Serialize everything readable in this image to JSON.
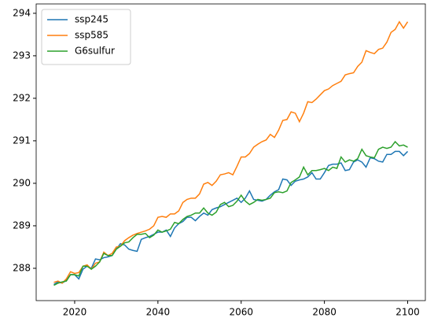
{
  "chart_data": {
    "type": "line",
    "x": [
      2015,
      2016,
      2017,
      2018,
      2019,
      2020,
      2021,
      2022,
      2023,
      2024,
      2025,
      2026,
      2027,
      2028,
      2029,
      2030,
      2031,
      2032,
      2033,
      2034,
      2035,
      2036,
      2037,
      2038,
      2039,
      2040,
      2041,
      2042,
      2043,
      2044,
      2045,
      2046,
      2047,
      2048,
      2049,
      2050,
      2051,
      2052,
      2053,
      2054,
      2055,
      2056,
      2057,
      2058,
      2059,
      2060,
      2061,
      2062,
      2063,
      2064,
      2065,
      2066,
      2067,
      2068,
      2069,
      2070,
      2071,
      2072,
      2073,
      2074,
      2075,
      2076,
      2077,
      2078,
      2079,
      2080,
      2081,
      2082,
      2083,
      2084,
      2085,
      2086,
      2087,
      2088,
      2089,
      2090,
      2091,
      2092,
      2093,
      2094,
      2095,
      2096,
      2097,
      2098,
      2099,
      2100
    ],
    "series": [
      {
        "name": "ssp245",
        "color": "#1f77b4",
        "values": [
          287.62,
          287.68,
          287.65,
          287.72,
          287.85,
          287.85,
          287.75,
          287.98,
          288.05,
          288.0,
          288.22,
          288.2,
          288.25,
          288.27,
          288.3,
          288.45,
          288.58,
          288.55,
          288.45,
          288.42,
          288.4,
          288.68,
          288.72,
          288.75,
          288.8,
          288.85,
          288.85,
          288.9,
          288.75,
          288.95,
          289.05,
          289.1,
          289.2,
          289.2,
          289.12,
          289.22,
          289.3,
          289.25,
          289.38,
          289.42,
          289.45,
          289.5,
          289.55,
          289.6,
          289.65,
          289.55,
          289.65,
          289.82,
          289.62,
          289.6,
          289.58,
          289.62,
          289.72,
          289.8,
          289.85,
          290.1,
          290.08,
          289.95,
          290.05,
          290.08,
          290.1,
          290.15,
          290.25,
          290.1,
          290.1,
          290.25,
          290.42,
          290.45,
          290.45,
          290.48,
          290.3,
          290.32,
          290.5,
          290.55,
          290.5,
          290.38,
          290.6,
          290.58,
          290.52,
          290.5,
          290.68,
          290.68,
          290.75,
          290.75,
          290.65,
          290.75
        ]
      },
      {
        "name": "ssp585",
        "color": "#ff7f0e",
        "values": [
          287.67,
          287.7,
          287.65,
          287.75,
          287.92,
          287.88,
          287.9,
          288.05,
          288.08,
          287.98,
          288.12,
          288.15,
          288.38,
          288.3,
          288.35,
          288.5,
          288.52,
          288.65,
          288.72,
          288.78,
          288.82,
          288.85,
          288.88,
          288.92,
          289.0,
          289.2,
          289.22,
          289.2,
          289.28,
          289.28,
          289.35,
          289.55,
          289.62,
          289.65,
          289.65,
          289.75,
          289.98,
          290.02,
          289.95,
          290.05,
          290.2,
          290.22,
          290.25,
          290.2,
          290.4,
          290.62,
          290.62,
          290.7,
          290.85,
          290.92,
          290.98,
          291.02,
          291.15,
          291.08,
          291.25,
          291.48,
          291.5,
          291.68,
          291.65,
          291.45,
          291.65,
          291.92,
          291.9,
          291.98,
          292.08,
          292.18,
          292.22,
          292.3,
          292.35,
          292.4,
          292.55,
          292.58,
          292.6,
          292.75,
          292.85,
          293.12,
          293.08,
          293.05,
          293.15,
          293.18,
          293.32,
          293.55,
          293.62,
          293.8,
          293.65,
          293.8
        ]
      },
      {
        "name": "G6sulfur",
        "color": "#2ca02c",
        "values": [
          287.6,
          287.65,
          287.68,
          287.7,
          287.85,
          287.85,
          287.82,
          288.05,
          288.05,
          287.98,
          288.05,
          288.15,
          288.35,
          288.3,
          288.3,
          288.45,
          288.52,
          288.6,
          288.62,
          288.72,
          288.8,
          288.8,
          288.82,
          288.72,
          288.78,
          288.9,
          288.85,
          288.88,
          288.92,
          289.08,
          289.05,
          289.15,
          289.22,
          289.25,
          289.3,
          289.3,
          289.42,
          289.3,
          289.25,
          289.32,
          289.5,
          289.55,
          289.45,
          289.48,
          289.58,
          289.72,
          289.58,
          289.5,
          289.55,
          289.62,
          289.6,
          289.62,
          289.65,
          289.78,
          289.8,
          289.78,
          289.82,
          290.02,
          290.08,
          290.15,
          290.38,
          290.2,
          290.3,
          290.3,
          290.32,
          290.35,
          290.3,
          290.38,
          290.35,
          290.62,
          290.5,
          290.55,
          290.52,
          290.58,
          290.8,
          290.65,
          290.62,
          290.6,
          290.8,
          290.85,
          290.82,
          290.85,
          290.98,
          290.88,
          290.9,
          290.85
        ]
      }
    ],
    "xlim": [
      2010.75,
      2104.25
    ],
    "xticks": [
      2020,
      2040,
      2060,
      2080,
      2100
    ],
    "ylim": [
      287.24,
      294.22
    ],
    "yticks": [
      288,
      289,
      290,
      291,
      292,
      293,
      294
    ],
    "legend": "upper left"
  }
}
